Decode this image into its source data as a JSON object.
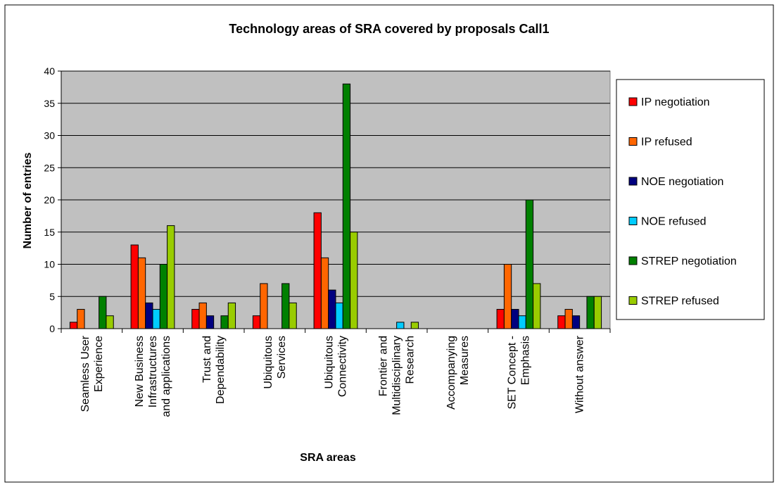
{
  "chart_data": {
    "type": "bar",
    "title": "Technology areas of SRA covered by proposals Call1",
    "xlabel": "SRA areas",
    "ylabel": "Number of entries",
    "ylim": [
      0,
      40
    ],
    "yticks": [
      0,
      5,
      10,
      15,
      20,
      25,
      30,
      35,
      40
    ],
    "grid": true,
    "legend_position": "right",
    "categories": [
      [
        "Seamless User",
        "Experience"
      ],
      [
        "New Business",
        "Infrastructures",
        "and applications"
      ],
      [
        "Trust and",
        "Dependability"
      ],
      [
        "Ubiquitous",
        "Services"
      ],
      [
        "Ubiquitous",
        "Connectivity"
      ],
      [
        "Frontier and",
        "Multidisciplinary",
        "Research"
      ],
      [
        "Accompanying",
        "Measures"
      ],
      [
        "SET Concept -",
        "Emphasis"
      ],
      [
        "Without answer"
      ]
    ],
    "series": [
      {
        "name": "IP negotiation",
        "color": "#ff0000",
        "values": [
          1,
          13,
          3,
          2,
          18,
          0,
          0,
          3,
          2
        ]
      },
      {
        "name": "IP refused",
        "color": "#ff6600",
        "values": [
          3,
          11,
          4,
          7,
          11,
          0,
          0,
          10,
          3
        ]
      },
      {
        "name": "NOE negotiation",
        "color": "#000080",
        "values": [
          0,
          4,
          2,
          0,
          6,
          0,
          0,
          3,
          2
        ]
      },
      {
        "name": "NOE refused",
        "color": "#00ccff",
        "values": [
          0,
          3,
          0,
          0,
          4,
          1,
          0,
          2,
          0
        ]
      },
      {
        "name": "STREP negotiation",
        "color": "#008000",
        "values": [
          5,
          10,
          2,
          7,
          38,
          0,
          0,
          20,
          5
        ]
      },
      {
        "name": "STREP refused",
        "color": "#99cc00",
        "values": [
          2,
          16,
          4,
          4,
          15,
          1,
          0,
          7,
          5
        ]
      }
    ],
    "plot_background": "#c0c0c0"
  }
}
